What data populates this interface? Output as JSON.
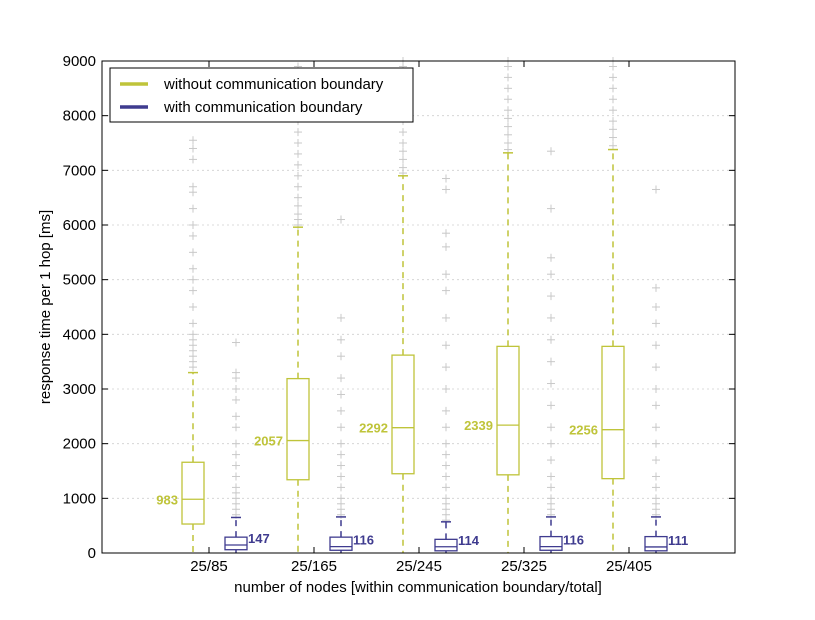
{
  "chart_data": {
    "type": "box",
    "title": "",
    "xlabel": "number of nodes [within communication boundary/total]",
    "ylabel": "response time per 1 hop [ms]",
    "ylim": [
      0,
      9000
    ],
    "yticks": [
      0,
      1000,
      2000,
      3000,
      4000,
      5000,
      6000,
      7000,
      8000,
      9000
    ],
    "grid": "horizontal dotted",
    "legend_position": "top-left",
    "categories": [
      "25/85",
      "25/165",
      "25/245",
      "25/325",
      "25/405"
    ],
    "series": [
      {
        "name": "without communication boundary",
        "color": "#bfc43a",
        "boxes": [
          {
            "q1": 530,
            "median": 983,
            "q3": 1660,
            "whisker_low": 0,
            "whisker_high": 3300,
            "median_label": "983",
            "outliers": [
              3400,
              3500,
              3600,
              3700,
              3800,
              3900,
              4000,
              4200,
              4500,
              4800,
              5000,
              5200,
              5500,
              5800,
              6000,
              6300,
              6600,
              6700,
              7200,
              7400,
              7550
            ]
          },
          {
            "q1": 1340,
            "median": 2057,
            "q3": 3190,
            "whisker_low": 0,
            "whisker_high": 5960,
            "median_label": "2057",
            "outliers": [
              6000,
              6100,
              6200,
              6350,
              6500,
              6700,
              6900,
              7100,
              7300,
              7500,
              7700,
              7900,
              8100,
              8300,
              8500,
              8700,
              8900
            ]
          },
          {
            "q1": 1450,
            "median": 2292,
            "q3": 3620,
            "whisker_low": 0,
            "whisker_high": 6900,
            "median_label": "2292",
            "outliers": [
              6950,
              7050,
              7200,
              7350,
              7500,
              7700,
              7900,
              8100,
              8300,
              8500,
              8700,
              8900,
              9000
            ]
          },
          {
            "q1": 1430,
            "median": 2339,
            "q3": 3780,
            "whisker_low": 0,
            "whisker_high": 7320,
            "median_label": "2339",
            "outliers": [
              7380,
              7500,
              7650,
              7800,
              7950,
              8100,
              8300,
              8500,
              8700,
              8900,
              9000
            ]
          },
          {
            "q1": 1360,
            "median": 2256,
            "q3": 3780,
            "whisker_low": 0,
            "whisker_high": 7380,
            "median_label": "2256",
            "outliers": [
              7450,
              7600,
              7750,
              7900,
              8100,
              8300,
              8500,
              8700,
              8900,
              9000
            ]
          }
        ]
      },
      {
        "name": "with communication boundary",
        "color": "#3f3b8f",
        "boxes": [
          {
            "q1": 60,
            "median": 147,
            "q3": 290,
            "whisker_low": 0,
            "whisker_high": 650,
            "median_label": "147",
            "outliers": [
              700,
              800,
              900,
              1000,
              1100,
              1200,
              1400,
              1600,
              1800,
              2000,
              2300,
              2500,
              2800,
              3000,
              3200,
              3300,
              3850
            ]
          },
          {
            "q1": 50,
            "median": 116,
            "q3": 290,
            "whisker_low": 0,
            "whisker_high": 660,
            "median_label": "116",
            "outliers": [
              700,
              800,
              900,
              1000,
              1200,
              1400,
              1600,
              1800,
              2000,
              2300,
              2600,
              2900,
              3200,
              3600,
              3900,
              4300,
              6100
            ]
          },
          {
            "q1": 40,
            "median": 114,
            "q3": 250,
            "whisker_low": 0,
            "whisker_high": 570,
            "median_label": "114",
            "outliers": [
              600,
              700,
              800,
              900,
              1000,
              1200,
              1400,
              1600,
              1800,
              2000,
              2300,
              2600,
              3000,
              3400,
              3800,
              4300,
              4800,
              5100,
              5600,
              5850,
              6650,
              6850
            ]
          },
          {
            "q1": 50,
            "median": 116,
            "q3": 300,
            "whisker_low": 0,
            "whisker_high": 660,
            "median_label": "116",
            "outliers": [
              700,
              800,
              900,
              1000,
              1200,
              1400,
              1700,
              2000,
              2300,
              2700,
              3100,
              3500,
              3900,
              4300,
              4700,
              5100,
              5400,
              6300,
              7350
            ]
          },
          {
            "q1": 40,
            "median": 111,
            "q3": 300,
            "whisker_low": 0,
            "whisker_high": 660,
            "median_label": "111",
            "outliers": [
              700,
              800,
              900,
              1000,
              1200,
              1400,
              1700,
              2000,
              2300,
              2700,
              3000,
              3400,
              3800,
              4200,
              4500,
              4850,
              6650
            ]
          }
        ]
      }
    ]
  }
}
